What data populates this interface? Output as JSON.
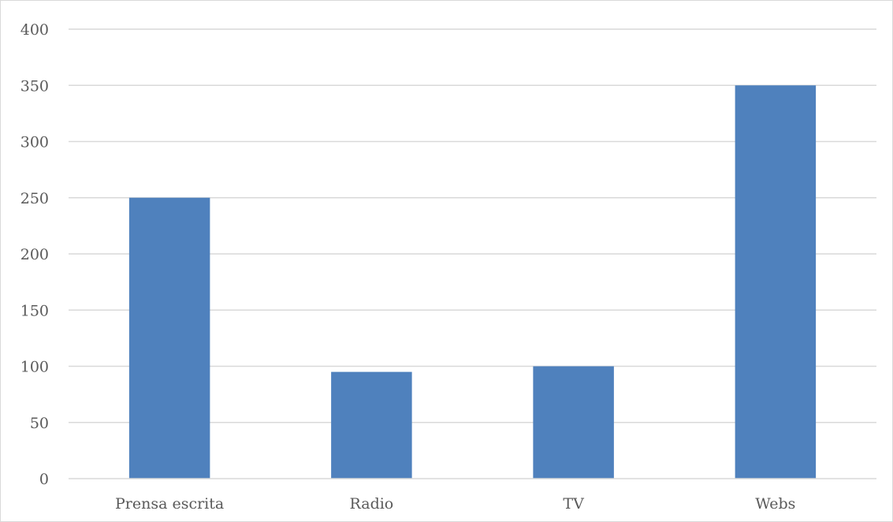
{
  "chart_data": {
    "type": "bar",
    "title": "",
    "xlabel": "",
    "ylabel": "",
    "categories": [
      "Prensa escrita",
      "Radio",
      "TV",
      "Webs"
    ],
    "values": [
      250,
      95,
      100,
      350
    ],
    "ylim": [
      0,
      400
    ],
    "yticks": [
      "0",
      "50",
      "100",
      "150",
      "200",
      "250",
      "300",
      "350",
      "400"
    ],
    "grid": true,
    "legend": "none",
    "colors": {
      "bar": "#4f81bd",
      "grid": "#d9d9d9",
      "text": "#595959"
    }
  }
}
